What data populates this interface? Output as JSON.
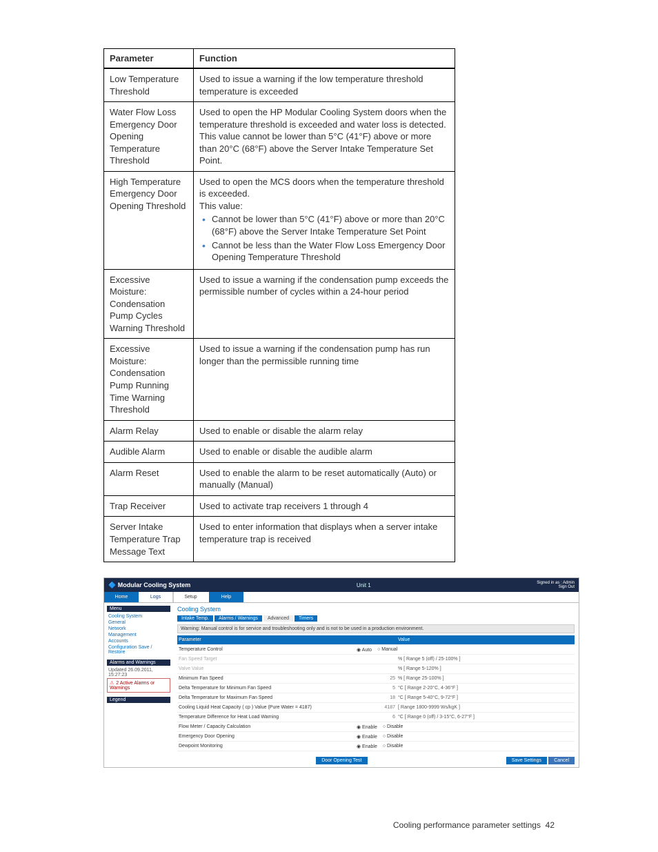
{
  "table": {
    "headers": [
      "Parameter",
      "Function"
    ],
    "rows": [
      {
        "p": "Low Temperature Threshold",
        "f": "Used to issue a warning if the low temperature threshold temperature is exceeded"
      },
      {
        "p": "Water Flow Loss Emergency Door Opening Temperature Threshold",
        "f": "Used to open the HP Modular Cooling System doors when the temperature threshold is exceeded and water loss is detected.\nThis value cannot be lower than 5°C (41°F) above or more than 20°C (68°F) above the Server Intake Temperature Set Point."
      },
      {
        "p": "High Temperature Emergency Door Opening Threshold",
        "f_pre": "Used to open the MCS doors when the temperature threshold is exceeded.\nThis value:",
        "bullets": [
          "Cannot be lower than 5°C (41°F) above or more than 20°C (68°F) above the Server Intake Temperature Set Point",
          "Cannot be less than the Water Flow Loss Emergency Door Opening Temperature Threshold"
        ]
      },
      {
        "p": "Excessive Moisture: Condensation Pump Cycles Warning Threshold",
        "f": "Used to issue a warning if the condensation pump exceeds the permissible number of cycles within a 24-hour period"
      },
      {
        "p": "Excessive Moisture: Condensation Pump Running Time Warning Threshold",
        "f": "Used to issue a warning if the condensation pump has run longer than the permissible running time"
      },
      {
        "p": "Alarm Relay",
        "f": "Used to enable or disable the alarm relay"
      },
      {
        "p": "Audible Alarm",
        "f": "Used to enable or disable the audible alarm"
      },
      {
        "p": "Alarm Reset",
        "f": "Used to enable the alarm to be reset automatically (Auto) or manually (Manual)"
      },
      {
        "p": "Trap Receiver",
        "f": "Used to activate trap receivers 1 through 4"
      },
      {
        "p": "Server Intake Temperature Trap Message Text",
        "f": "Used to enter information that displays when a server intake temperature trap is received"
      }
    ]
  },
  "shot": {
    "brand": "Modular Cooling System",
    "unit": "Unit 1",
    "signed": "Signed in as : Admin",
    "signout": "Sign Out",
    "nav1": "Home",
    "nav2": "Logs",
    "nav3": "Setup",
    "nav4": "Help",
    "left_menu_hdr": "Menu",
    "left_items": [
      "Cooling System",
      "General",
      "Network",
      "Management",
      "Accounts",
      "Configuration Save / Restore"
    ],
    "alarms_hdr": "Alarms and Warnings",
    "alarms_upd": "Updated 26.09.2011, 15:27:23",
    "alarm_line": "2 Active Alarms or Warnings",
    "legend_hdr": "Legend",
    "main_title": "Cooling System",
    "pills": [
      "Intake Temp.",
      "Alarms / Warnings",
      "Advanced",
      "Timers"
    ],
    "warn": "Warning: Manual control is for service and troubleshooting only and is not to be used in a production environment.",
    "cfg_header_left": "Parameter",
    "cfg_header_right": "Value",
    "cfg": [
      {
        "l": "Temperature Control",
        "radio": [
          "Auto",
          "Manual"
        ]
      },
      {
        "l": "Fan Speed Target",
        "v": "",
        "r": "%   [ Range 5 (off) / 25-100% ]",
        "grey": true
      },
      {
        "l": "Valve Value",
        "v": "",
        "r": "%   [ Range 5-120% ]",
        "grey": true
      },
      {
        "l": "Minimum Fan Speed",
        "v": "25",
        "r": "%   [ Range 25-100% ]"
      },
      {
        "l": "Delta Temperature for Minimum Fan Speed",
        "v": "5",
        "r": "°C   [ Range 2-20°C, 4-36°F ]"
      },
      {
        "l": "Delta Temperature for Maximum Fan Speed",
        "v": "18",
        "r": "°C   [ Range 5-40°C, 9-72°F ]"
      },
      {
        "l": "Cooling Liquid Heat Capacity ( cp ) Value (Pure Water = 4187)",
        "v": "4187",
        "r": "   [ Range 1800-9999 Ws/kgK ]"
      },
      {
        "l": "Temperature Difference for Heat Load Warning",
        "v": "6",
        "r": "°C   [ Range 0 (off) / 3-15°C, 6-27°F ]"
      },
      {
        "l": "Flow Meter / Capacity Calculation",
        "radio": [
          "Enable",
          "Disable"
        ]
      },
      {
        "l": "Emergency Door Opening",
        "radio": [
          "Enable",
          "Disable"
        ]
      },
      {
        "l": "Dewpoint Monitoring",
        "radio": [
          "Enable",
          "Disable"
        ]
      }
    ],
    "btn_left": "Door Opening Test",
    "btn_save": "Save Settings",
    "btn_cancel": "Cancel"
  },
  "footer": {
    "text": "Cooling performance parameter settings",
    "page": "42"
  }
}
